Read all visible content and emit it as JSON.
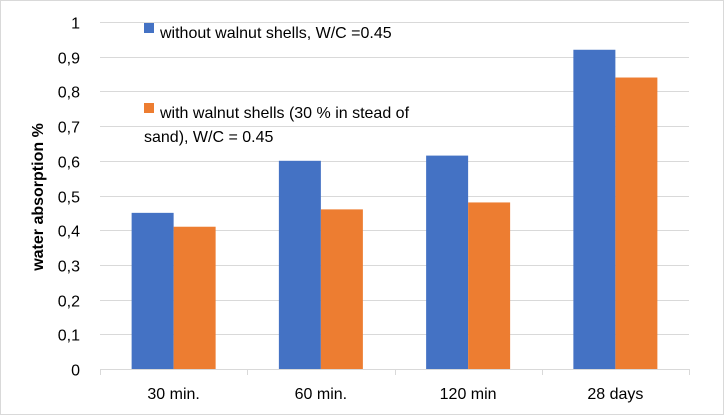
{
  "chart_data": {
    "type": "bar",
    "title": "",
    "xlabel": "",
    "ylabel": "water absorption %",
    "categories": [
      "30 min.",
      "60 min.",
      "120 min",
      "28 days"
    ],
    "series": [
      {
        "name": "without walnut shells, W/C =0.45",
        "color": "#4472c4",
        "values": [
          0.45,
          0.6,
          0.615,
          0.92
        ]
      },
      {
        "name": "with walnut shells (30 % in stead of sand), W/C = 0.45",
        "color": "#ed7d31",
        "values": [
          0.41,
          0.46,
          0.48,
          0.84
        ]
      }
    ],
    "ylim": [
      0,
      1
    ],
    "yticks": [
      "0",
      "0,1",
      "0,2",
      "0,3",
      "0,4",
      "0,5",
      "0,6",
      "0,7",
      "0,8",
      "0,9",
      "1"
    ],
    "grid": true,
    "legend_position": "top-left inside plot",
    "legend_lines": [
      [
        "without walnut shells, W/C =0.45"
      ],
      [
        "with walnut shells (30 % in stead of",
        "sand), W/C = 0.45"
      ]
    ]
  }
}
